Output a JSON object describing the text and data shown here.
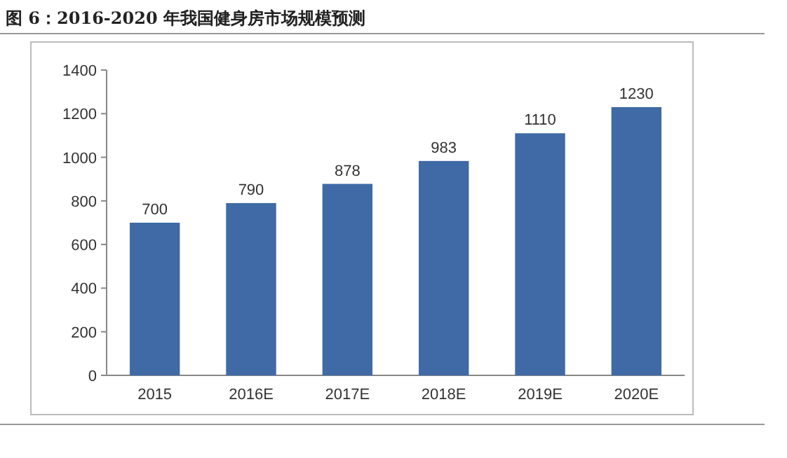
{
  "chart_data": {
    "type": "bar",
    "title": "图 6：2016-2020 年我国健身房市场规模预测",
    "categories": [
      "2015",
      "2016E",
      "2017E",
      "2018E",
      "2019E",
      "2020E"
    ],
    "values": [
      700,
      790,
      878,
      983,
      1110,
      1230
    ],
    "color": "#3f6aa6",
    "ylim": [
      0,
      1400
    ],
    "yticks": [
      0,
      200,
      400,
      600,
      800,
      1000,
      1200,
      1400
    ],
    "data_labels": true
  }
}
